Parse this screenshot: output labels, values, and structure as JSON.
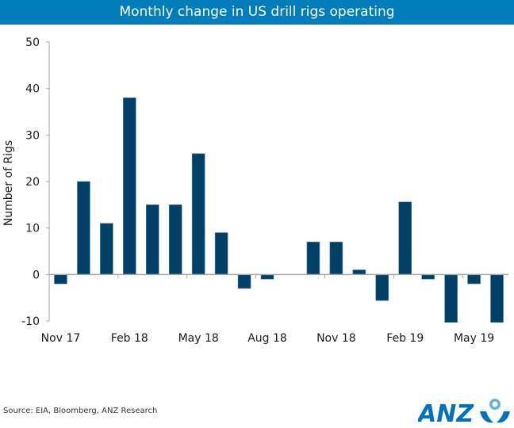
{
  "header": {
    "title": "Monthly change in US drill rigs operating"
  },
  "footer": {
    "source": "Source: EIA, Bloomberg, ANZ Research",
    "logo_text": "ANZ"
  },
  "colors": {
    "title_bg": "#007dba",
    "bar": "#003f66",
    "axis": "#a6a6a6"
  },
  "chart_data": {
    "type": "bar",
    "title": "Monthly change in US drill rigs operating",
    "xlabel": "",
    "ylabel": "Number of Rigs",
    "ylim": [
      -10,
      50
    ],
    "yticks": [
      -10,
      0,
      10,
      20,
      30,
      40,
      50
    ],
    "categories": [
      "Nov 17",
      "Dec 17",
      "Jan 18",
      "Feb 18",
      "Mar 18",
      "Apr 18",
      "May 18",
      "Jun 18",
      "Jul 18",
      "Aug 18",
      "Sep 18",
      "Oct 18",
      "Nov 18",
      "Dec 18",
      "Jan 19",
      "Feb 19",
      "Mar 19",
      "Apr 19",
      "May 19",
      "Jun 19"
    ],
    "xtick_labels": [
      "Nov 17",
      "Feb 18",
      "May 18",
      "Aug 18",
      "Nov 18",
      "Feb 19",
      "May 19"
    ],
    "values": [
      -2,
      20,
      11,
      38,
      15,
      15,
      26,
      9,
      -3,
      -1,
      0,
      7,
      7,
      1,
      -5.6,
      15.6,
      -1,
      -10.3,
      -2,
      -10.3
    ],
    "grid": false,
    "legend": "none"
  }
}
